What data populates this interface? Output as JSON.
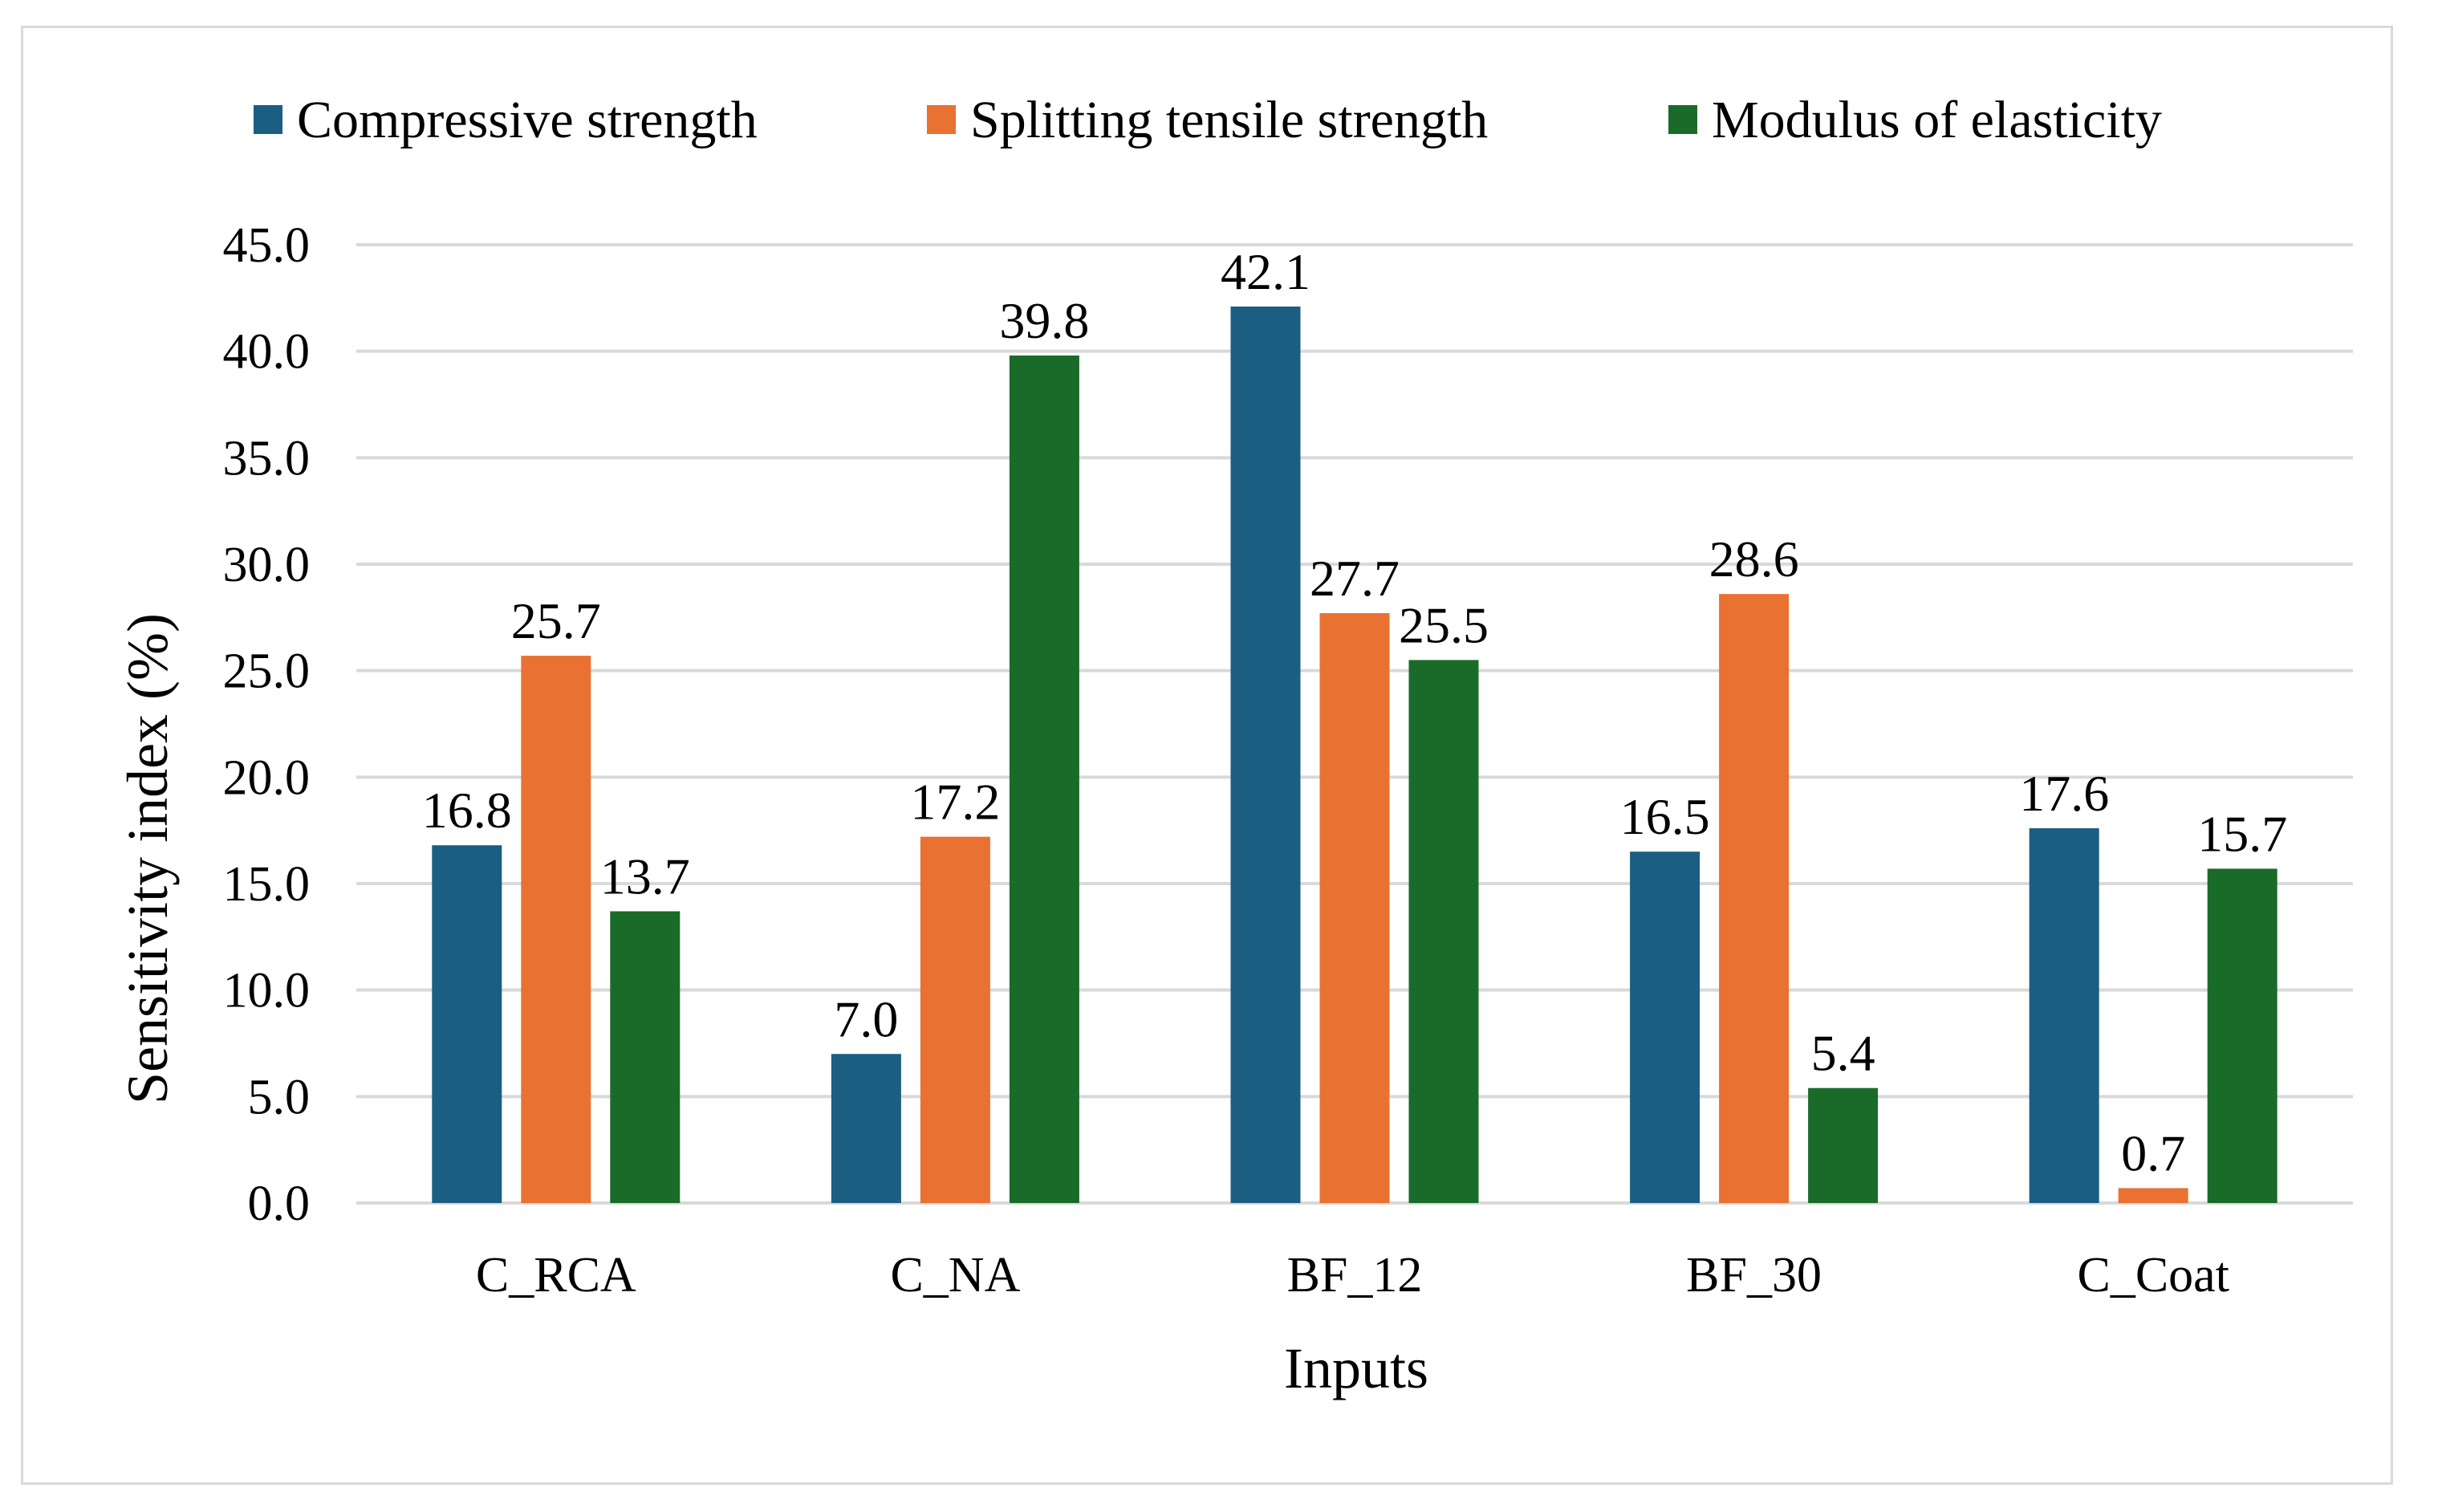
{
  "chart_data": {
    "type": "bar",
    "categories": [
      "C_RCA",
      "C_NA",
      "BF_12",
      "BF_30",
      "C_Coat"
    ],
    "series": [
      {
        "name": "Compressive strength",
        "color": "#1b5e82",
        "values": [
          16.8,
          7.0,
          42.1,
          16.5,
          17.6
        ]
      },
      {
        "name": "Splitting tensile strength",
        "color": "#e97132",
        "values": [
          25.7,
          17.2,
          27.7,
          28.6,
          0.7
        ]
      },
      {
        "name": "Modulus of elasticity",
        "color": "#1a6b2a",
        "values": [
          13.7,
          39.8,
          25.5,
          5.4,
          15.7
        ]
      }
    ],
    "y_ticks": [
      "0.0",
      "5.0",
      "10.0",
      "15.0",
      "20.0",
      "25.0",
      "30.0",
      "35.0",
      "40.0",
      "45.0"
    ],
    "ylim": [
      0,
      45
    ],
    "xlabel": "Inputs",
    "ylabel": "Sensitivity index (%)",
    "title": "",
    "legend_position": "top",
    "grid": true,
    "gridline_color": "#d9d9d9",
    "data_label_format": "one-decimal"
  }
}
